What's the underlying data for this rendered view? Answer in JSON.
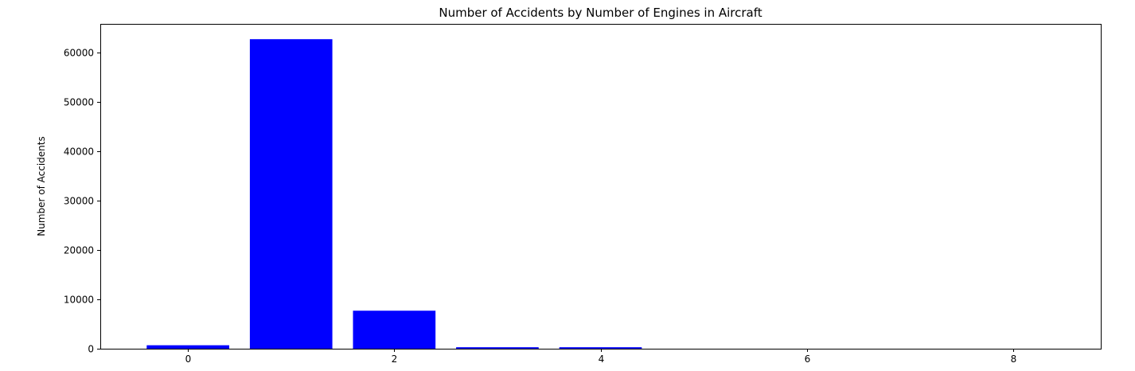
{
  "chart_data": {
    "type": "bar",
    "title": "Number of Accidents by Number of Engines in Aircraft",
    "xlabel": "",
    "ylabel": "Number of Accidents",
    "x": [
      0,
      1,
      2,
      3,
      4,
      5,
      6,
      7,
      8
    ],
    "values": [
      700,
      62700,
      7700,
      300,
      300,
      0,
      0,
      0,
      0
    ],
    "xlim": [
      -0.85,
      8.85
    ],
    "ylim": [
      0,
      65800
    ],
    "xticks": [
      0,
      2,
      4,
      6,
      8
    ],
    "yticks": [
      0,
      10000,
      20000,
      30000,
      40000,
      50000,
      60000
    ],
    "bar_width": 0.8,
    "bar_color": "#0000ff",
    "grid": false,
    "legend": "none"
  }
}
